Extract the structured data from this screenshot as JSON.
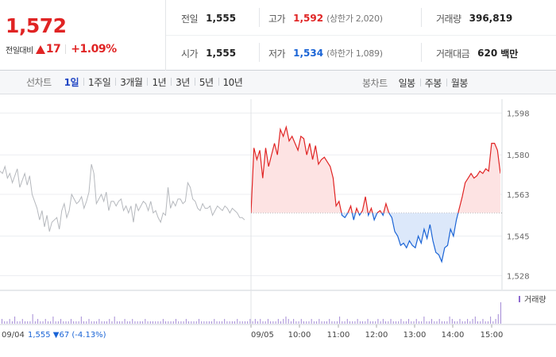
{
  "quote": {
    "price": "1,572",
    "change_label": "전일대비",
    "change_amount": "17",
    "change_pct": "+1.09%"
  },
  "stats": {
    "prev_close_label": "전일",
    "prev_close": "1,555",
    "open_label": "시가",
    "open": "1,555",
    "high_label": "고가",
    "high": "1,592",
    "high_sub": "(상한가 2,020)",
    "low_label": "저가",
    "low": "1,534",
    "low_sub": "(하한가 1,089)",
    "volume_label": "거래량",
    "volume": "396,819",
    "amount_label": "거래대금",
    "amount": "620",
    "amount_unit": "백만"
  },
  "toolbar": {
    "line_chart_label": "선차트",
    "periods": [
      "1일",
      "1주일",
      "3개월",
      "1년",
      "3년",
      "5년",
      "10년"
    ],
    "active_period": "1일",
    "candle_chart_label": "봉차트",
    "candle_periods": [
      "일봉",
      "주봉",
      "월봉"
    ]
  },
  "colors": {
    "up": "#e02424",
    "down": "#1a64d6",
    "accent": "#2146c4"
  },
  "chart_data": {
    "type": "line",
    "prev_day_label": "09/04",
    "prev_day_summary": "1,555 ▼67 (-4.13%)",
    "legend": "거래량",
    "y_ticks": [
      1598,
      1580,
      1563,
      1545,
      1528
    ],
    "ylim": [
      1522,
      1604
    ],
    "baseline": 1555,
    "x_ticks": [
      "09/05",
      "10:00",
      "11:00",
      "12:00",
      "13:00",
      "14:00",
      "15:00"
    ],
    "prev_day_series": [
      1573,
      1572,
      1575,
      1570,
      1572,
      1568,
      1571,
      1574,
      1566,
      1569,
      1572,
      1567,
      1571,
      1563,
      1560,
      1557,
      1552,
      1556,
      1549,
      1554,
      1547,
      1551,
      1552,
      1553,
      1548,
      1556,
      1559,
      1553,
      1556,
      1563,
      1561,
      1559,
      1560,
      1562,
      1557,
      1560,
      1564,
      1576,
      1572,
      1559,
      1561,
      1563,
      1560,
      1564,
      1556,
      1560,
      1560,
      1558,
      1560,
      1561,
      1556,
      1558,
      1555,
      1558,
      1551,
      1559,
      1556,
      1558,
      1560,
      1559,
      1556,
      1560,
      1555,
      1556,
      1553,
      1551,
      1555,
      1554,
      1566,
      1557,
      1560,
      1558,
      1561,
      1561,
      1559,
      1560,
      1568,
      1566,
      1561,
      1560,
      1557,
      1556,
      1559,
      1557,
      1557,
      1558,
      1554,
      1556,
      1558,
      1557,
      1556,
      1558,
      1557,
      1555,
      1557,
      1556,
      1555,
      1553,
      1553,
      1552
    ],
    "today_series": [
      1555,
      1583,
      1578,
      1582,
      1570,
      1583,
      1575,
      1580,
      1585,
      1580,
      1591,
      1588,
      1592,
      1586,
      1588,
      1585,
      1582,
      1588,
      1587,
      1580,
      1585,
      1578,
      1584,
      1576,
      1578,
      1579,
      1577,
      1575,
      1570,
      1558,
      1560,
      1554,
      1553,
      1555,
      1558,
      1552,
      1557,
      1554,
      1556,
      1562,
      1554,
      1557,
      1552,
      1555,
      1556,
      1554,
      1559,
      1555,
      1553,
      1547,
      1545,
      1541,
      1542,
      1540,
      1543,
      1541,
      1540,
      1545,
      1542,
      1548,
      1544,
      1550,
      1543,
      1538,
      1537,
      1534,
      1540,
      1541,
      1548,
      1545,
      1552,
      1557,
      1562,
      1568,
      1570,
      1572,
      1570,
      1571,
      1573,
      1572,
      1574,
      1573,
      1585,
      1585,
      1582,
      1572
    ],
    "volume_series": [
      2,
      1,
      1,
      2,
      1,
      3,
      1,
      1,
      2,
      1,
      1,
      1,
      4,
      1,
      2,
      1,
      1,
      2,
      1,
      1,
      3,
      1,
      1,
      2,
      1,
      1,
      1,
      2,
      1,
      1,
      1,
      3,
      1,
      1,
      2,
      1,
      1,
      1,
      2,
      1,
      1,
      1,
      2,
      1,
      3,
      1,
      1,
      1,
      2,
      1,
      1,
      2,
      1,
      1,
      1,
      1,
      2,
      1,
      1,
      1,
      1,
      1,
      1,
      2,
      1,
      1,
      1,
      1,
      2,
      1,
      1,
      1,
      2,
      1,
      1,
      1,
      1,
      2,
      1,
      1,
      1,
      1,
      1,
      2,
      1,
      1,
      1,
      2,
      1,
      1,
      1,
      1,
      2,
      1,
      1,
      1,
      1,
      2,
      1,
      2,
      1,
      2,
      1,
      1,
      2,
      1,
      1,
      1,
      2,
      1,
      2,
      3,
      2,
      1,
      2,
      1,
      1,
      2,
      1,
      1,
      1,
      2,
      1,
      1,
      2,
      1,
      1,
      1,
      2,
      1,
      1,
      1,
      3,
      1,
      1,
      2,
      1,
      1,
      1,
      2,
      1,
      1,
      1,
      2,
      1,
      1,
      1,
      2,
      1,
      2,
      1,
      1,
      2,
      1,
      1,
      1,
      2,
      1,
      1,
      2,
      1,
      1,
      2,
      1,
      1,
      3,
      1,
      1,
      2,
      1,
      1,
      2,
      1,
      1,
      1,
      3,
      2,
      1,
      1,
      2,
      1,
      1,
      2,
      1,
      2,
      3,
      1,
      1,
      2,
      1,
      1,
      3,
      1,
      2,
      4,
      9
    ]
  }
}
